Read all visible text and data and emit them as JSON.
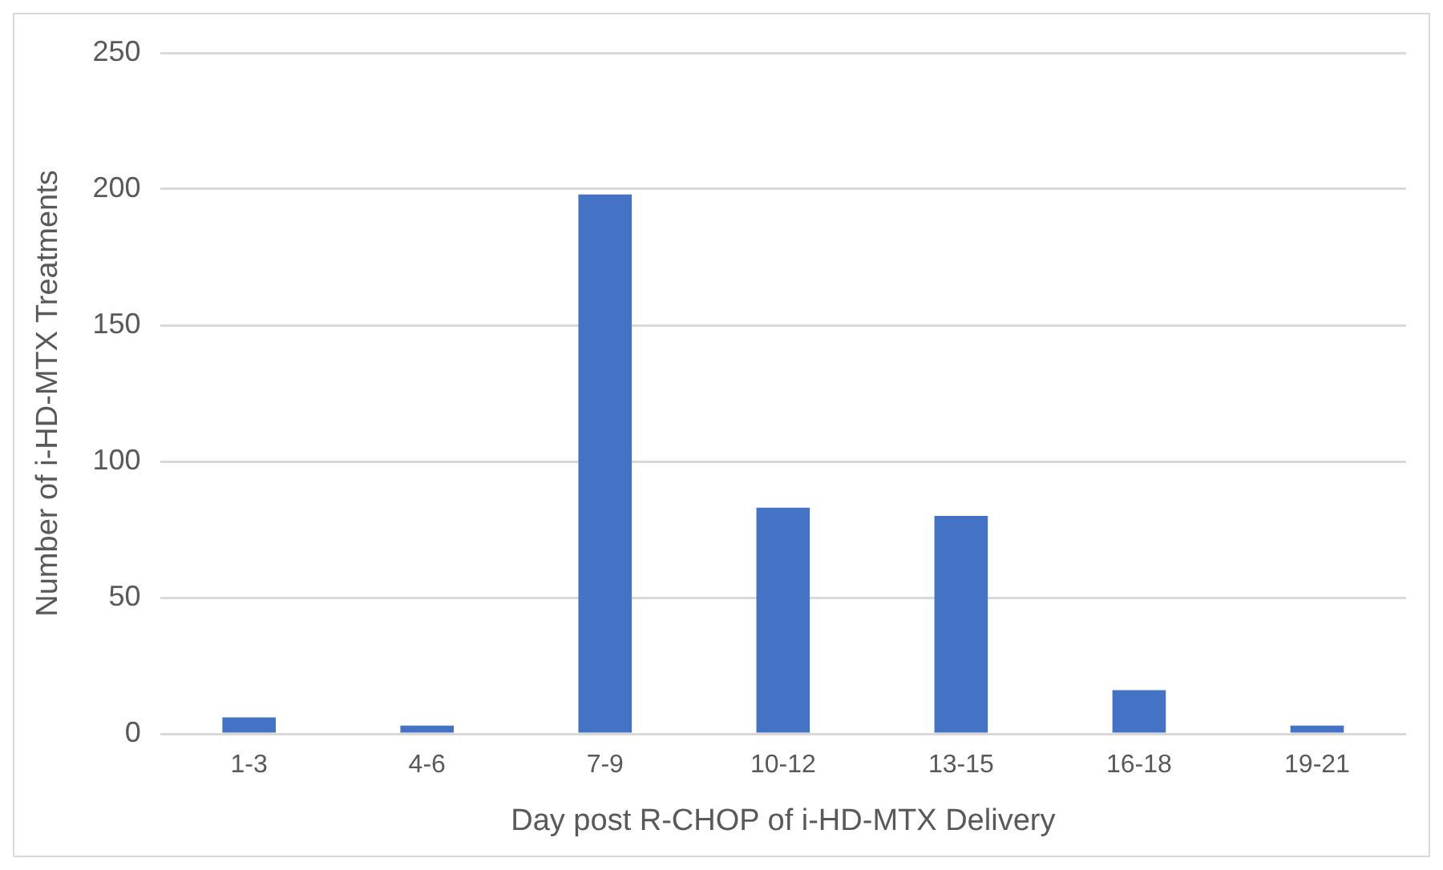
{
  "chart_data": {
    "type": "bar",
    "xlabel": "Day post R-CHOP of i-HD-MTX Delivery",
    "ylabel": "Number of i-HD-MTX Treatments",
    "categories": [
      "1-3",
      "4-6",
      "7-9",
      "10-12",
      "13-15",
      "16-18",
      "19-21"
    ],
    "values": [
      6,
      3,
      198,
      83,
      80,
      16,
      3
    ],
    "color": "#4472c4",
    "ylim": [
      0,
      250
    ],
    "yticks": [
      0,
      50,
      100,
      150,
      200,
      250
    ],
    "grid": "y"
  }
}
